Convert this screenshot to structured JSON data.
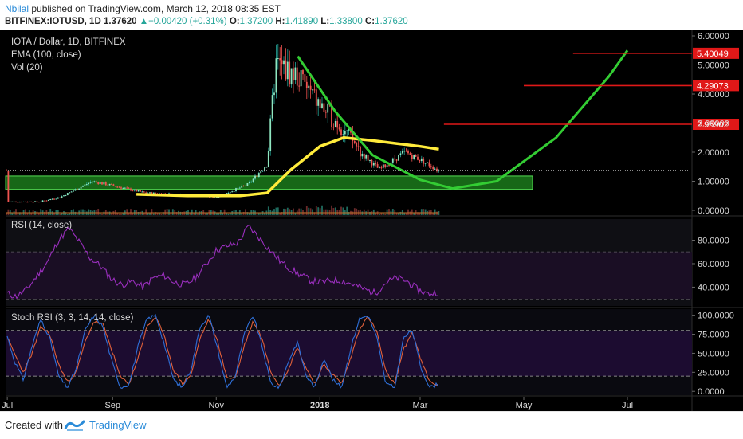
{
  "header": {
    "author": "Nbilal",
    "published_text": "published on TradingView.com, March 12, 2018 08:35 EST",
    "symbol": "BITFINEX:IOTUSD, 1D",
    "last": "1.37620",
    "change": "+0.00420 (+0.31%)",
    "o_label": "O:",
    "o_value": "1.37200",
    "h_label": "H:",
    "h_value": "1.41890",
    "l_label": "L:",
    "l_value": "1.33800",
    "c_label": "C:",
    "c_value": "1.37620"
  },
  "overlays": {
    "title": "IOTA / Dollar, 1D, BITFINEX",
    "ema": "EMA (100, close)",
    "vol": "Vol (20)",
    "rsi": "RSI (14, close)",
    "stoch": "Stoch RSI (3, 3, 14, 14, close)"
  },
  "footer": {
    "created_with": "Created with",
    "brand": "TradingView"
  },
  "colors": {
    "background": "#000000",
    "text": "#d8d8d8",
    "rsi_line": "#9b2fbf",
    "stoch_k": "#2f6fd8",
    "stoch_d": "#e0603a",
    "ema": "#ffeb3b",
    "projection": "#33cc33",
    "resistance": "#e01818",
    "support_zone": "#1b7a1b"
  },
  "chart_data": [
    {
      "type": "line",
      "title": "IOTA / Dollar, 1D, BITFINEX",
      "x_ticks": [
        "Jul",
        "Sep",
        "Nov",
        "2018",
        "Mar",
        "May",
        "Jul"
      ],
      "y_ticks": [
        "6.00000",
        "5.00000",
        "4.00000",
        "3.00000",
        "2.00000",
        "1.00000",
        "0.00000"
      ],
      "ylim": [
        0,
        6
      ],
      "series": [
        {
          "name": "IOTUSD (approx. close)",
          "x": [
            "2017-07-01",
            "2017-07-20",
            "2017-08-01",
            "2017-08-20",
            "2017-09-01",
            "2017-09-20",
            "2017-10-10",
            "2017-11-01",
            "2017-11-20",
            "2017-12-01",
            "2017-12-06",
            "2017-12-19",
            "2018-01-01",
            "2018-01-15",
            "2018-01-25",
            "2018-02-05",
            "2018-02-20",
            "2018-03-01",
            "2018-03-12"
          ],
          "values": [
            0.3,
            0.3,
            0.45,
            1.0,
            0.85,
            0.6,
            0.55,
            0.45,
            0.9,
            1.6,
            5.0,
            4.6,
            3.6,
            2.8,
            2.0,
            1.4,
            2.0,
            1.75,
            1.376
          ]
        },
        {
          "name": "EMA (100, close)",
          "x": [
            "2017-09-15",
            "2017-10-15",
            "2017-11-15",
            "2017-12-01",
            "2017-12-15",
            "2018-01-01",
            "2018-01-15",
            "2018-02-01",
            "2018-02-15",
            "2018-03-01",
            "2018-03-12"
          ],
          "values": [
            0.55,
            0.5,
            0.5,
            0.6,
            1.4,
            2.2,
            2.5,
            2.4,
            2.3,
            2.2,
            2.1
          ]
        },
        {
          "name": "Projection",
          "x": [
            "2017-12-19",
            "2018-01-10",
            "2018-02-01",
            "2018-03-01",
            "2018-03-20",
            "2018-04-15",
            "2018-05-20",
            "2018-06-20",
            "2018-07-01"
          ],
          "values": [
            5.3,
            3.4,
            1.9,
            1.05,
            0.75,
            1.0,
            2.5,
            4.6,
            5.5
          ]
        }
      ],
      "annotations": [
        "5.40049",
        "4.29073",
        "2.95902"
      ],
      "resistance_levels": [
        5.40049,
        4.29073,
        2.95902
      ],
      "support_zone": [
        0.72,
        1.18
      ],
      "last_price": 1.3762
    },
    {
      "type": "line",
      "title": "RSI (14, close)",
      "y_ticks": [
        "80.0000",
        "60.0000",
        "40.0000"
      ],
      "ylim": [
        24,
        98
      ],
      "bands": [
        70,
        30
      ],
      "series": [
        {
          "values": [
            35,
            32,
            38,
            50,
            62,
            80,
            90,
            78,
            65,
            58,
            47,
            42,
            45,
            40,
            48,
            50,
            44,
            42,
            48,
            60,
            72,
            75,
            78,
            92,
            82,
            72,
            62,
            55,
            50,
            45,
            44,
            46,
            45,
            42,
            38,
            35,
            44,
            48,
            45,
            38,
            34,
            36
          ]
        }
      ]
    },
    {
      "type": "line",
      "title": "Stoch RSI (3, 3, 14, 14, close)",
      "y_ticks": [
        "100.0000",
        "75.0000",
        "50.0000",
        "25.0000",
        "0.0000"
      ],
      "ylim": [
        -5,
        108
      ],
      "bands": [
        80,
        20
      ],
      "series": [
        {
          "name": "%K",
          "values": [
            80,
            40,
            15,
            60,
            95,
            70,
            20,
            5,
            30,
            80,
            100,
            85,
            40,
            5,
            10,
            60,
            95,
            100,
            60,
            15,
            5,
            30,
            85,
            100,
            55,
            5,
            20,
            75,
            100,
            60,
            10,
            5,
            40,
            65,
            20,
            5,
            45,
            15,
            5,
            55,
            95,
            100,
            70,
            10,
            5,
            70,
            80,
            30,
            5,
            10
          ]
        },
        {
          "name": "%D",
          "values": [
            75,
            50,
            25,
            50,
            85,
            75,
            35,
            12,
            25,
            65,
            92,
            88,
            55,
            18,
            10,
            45,
            85,
            98,
            70,
            28,
            10,
            22,
            70,
            95,
            65,
            18,
            18,
            60,
            92,
            70,
            25,
            8,
            30,
            58,
            30,
            10,
            35,
            22,
            10,
            42,
            82,
            98,
            78,
            25,
            10,
            55,
            78,
            40,
            12,
            8
          ]
        }
      ]
    }
  ]
}
